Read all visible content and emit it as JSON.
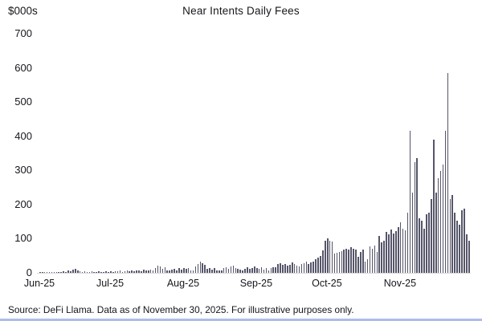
{
  "chart_data": {
    "type": "bar",
    "title": "Near Intents Daily Fees",
    "y_unit_label": "$000s",
    "ylabel": "$000s",
    "xlabel": "",
    "ylim": [
      0,
      700
    ],
    "y_ticks": [
      0,
      100,
      200,
      300,
      400,
      500,
      600,
      700
    ],
    "grid": "off",
    "legend": "none",
    "bar_color": "#55556a",
    "axis_line_color": "#d9d9d9",
    "months": [
      {
        "label": "Jun-25",
        "values": [
          1,
          1,
          1,
          1,
          1,
          2,
          1,
          1,
          2,
          3,
          4,
          3,
          6,
          4,
          10,
          12,
          6,
          4,
          3,
          5,
          2,
          3,
          4,
          2,
          3,
          5,
          3,
          2,
          4,
          3
        ]
      },
      {
        "label": "Jul-25",
        "values": [
          4,
          3,
          5,
          4,
          6,
          3,
          5,
          6,
          4,
          7,
          5,
          8,
          6,
          5,
          9,
          7,
          6,
          10,
          8,
          15,
          22,
          18,
          12,
          16,
          8,
          6,
          9,
          12,
          8,
          14,
          10
        ]
      },
      {
        "label": "Aug-25",
        "values": [
          14,
          12,
          15,
          8,
          8,
          18,
          25,
          32,
          28,
          24,
          12,
          15,
          10,
          14,
          6,
          8,
          7,
          14,
          16,
          12,
          18,
          20,
          15,
          12,
          10,
          8,
          12,
          16,
          12,
          14,
          18
        ]
      },
      {
        "label": "Sep-25",
        "values": [
          14,
          12,
          16,
          10,
          14,
          8,
          14,
          16,
          17,
          27,
          29,
          23,
          26,
          20,
          24,
          30,
          26,
          22,
          18,
          25,
          28,
          32,
          26,
          30,
          34,
          40,
          45,
          50,
          65,
          95
        ]
      },
      {
        "label": "Oct-25",
        "values": [
          100,
          95,
          92,
          56,
          58,
          60,
          63,
          67,
          70,
          68,
          74,
          70,
          67,
          46,
          60,
          67,
          33,
          40,
          78,
          70,
          81,
          60,
          108,
          90,
          94,
          119,
          112,
          126,
          115,
          123,
          135
        ]
      },
      {
        "label": "Nov-25",
        "values": [
          149,
          130,
          125,
          177,
          415,
          236,
          325,
          337,
          160,
          153,
          130,
          172,
          177,
          215,
          390,
          236,
          278,
          298,
          318,
          415,
          585,
          215,
          227,
          177,
          153,
          140,
          184,
          189,
          113,
          94
        ]
      }
    ]
  },
  "footer": {
    "source_note": "Source: DeFi Llama. Data as of November 30, 2025. For illustrative purposes only."
  },
  "colors": {
    "text": "#17171c",
    "bottom_edge": "#aebde6"
  }
}
